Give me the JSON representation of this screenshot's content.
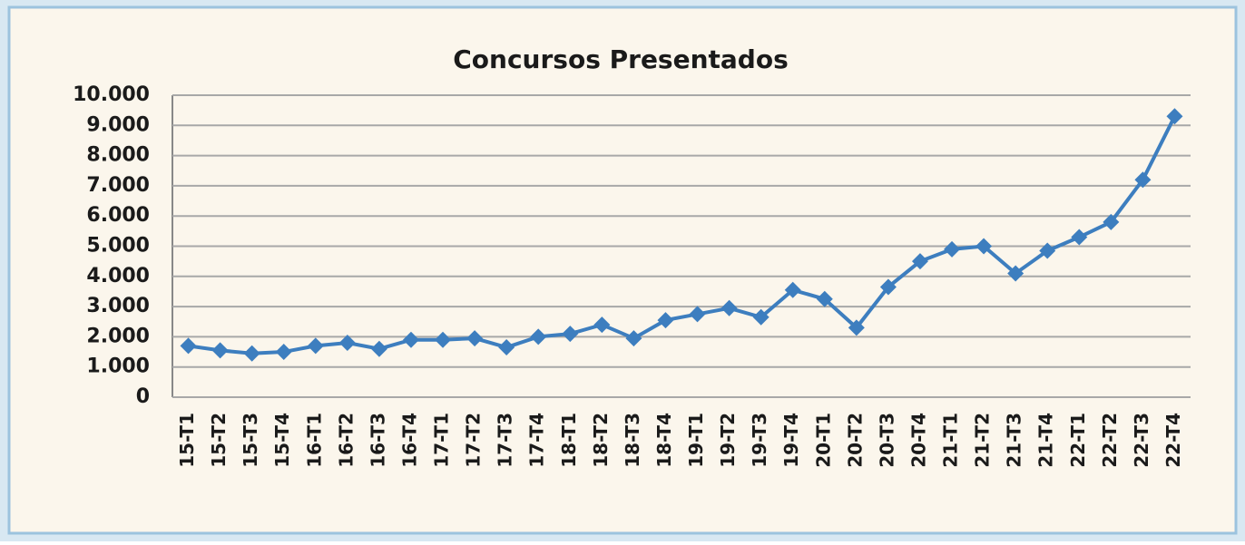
{
  "chart_data": {
    "type": "line",
    "title": "Concursos Presentados",
    "categories": [
      "15-T1",
      "15-T2",
      "15-T3",
      "15-T4",
      "16-T1",
      "16-T2",
      "16-T3",
      "16-T4",
      "17-T1",
      "17-T2",
      "17-T3",
      "17-T4",
      "18-T1",
      "18-T2",
      "18-T3",
      "18-T4",
      "19-T1",
      "19-T2",
      "19-T3",
      "19-T4",
      "20-T1",
      "20-T2",
      "20-T3",
      "20-T4",
      "21-T1",
      "21-T2",
      "21-T3",
      "21-T4",
      "22-T1",
      "22-T2",
      "22-T3",
      "22-T4"
    ],
    "values": [
      1700,
      1550,
      1450,
      1500,
      1700,
      1800,
      1600,
      1900,
      1900,
      1950,
      1650,
      2000,
      2100,
      2400,
      1950,
      2550,
      2750,
      2950,
      2650,
      3550,
      3250,
      2300,
      3650,
      4500,
      4900,
      5000,
      4100,
      4850,
      5300,
      5800,
      7200,
      9300
    ],
    "color": "#3d7ebf",
    "ylim": [
      0,
      10000
    ],
    "yticks": [
      0,
      {
        "value": 1000,
        "label": "1.000"
      },
      {
        "value": 2000,
        "label": "2.000"
      },
      {
        "value": 3000,
        "label": "3.000"
      },
      {
        "value": 4000,
        "label": "4.000"
      },
      {
        "value": 5000,
        "label": "5.000"
      },
      {
        "value": 6000,
        "label": "6.000"
      },
      {
        "value": 7000,
        "label": "7.000"
      },
      {
        "value": 8000,
        "label": "8.000"
      },
      {
        "value": 9000,
        "label": "9.000"
      },
      {
        "value": 10000,
        "label": "10.000"
      }
    ],
    "grid": true
  }
}
